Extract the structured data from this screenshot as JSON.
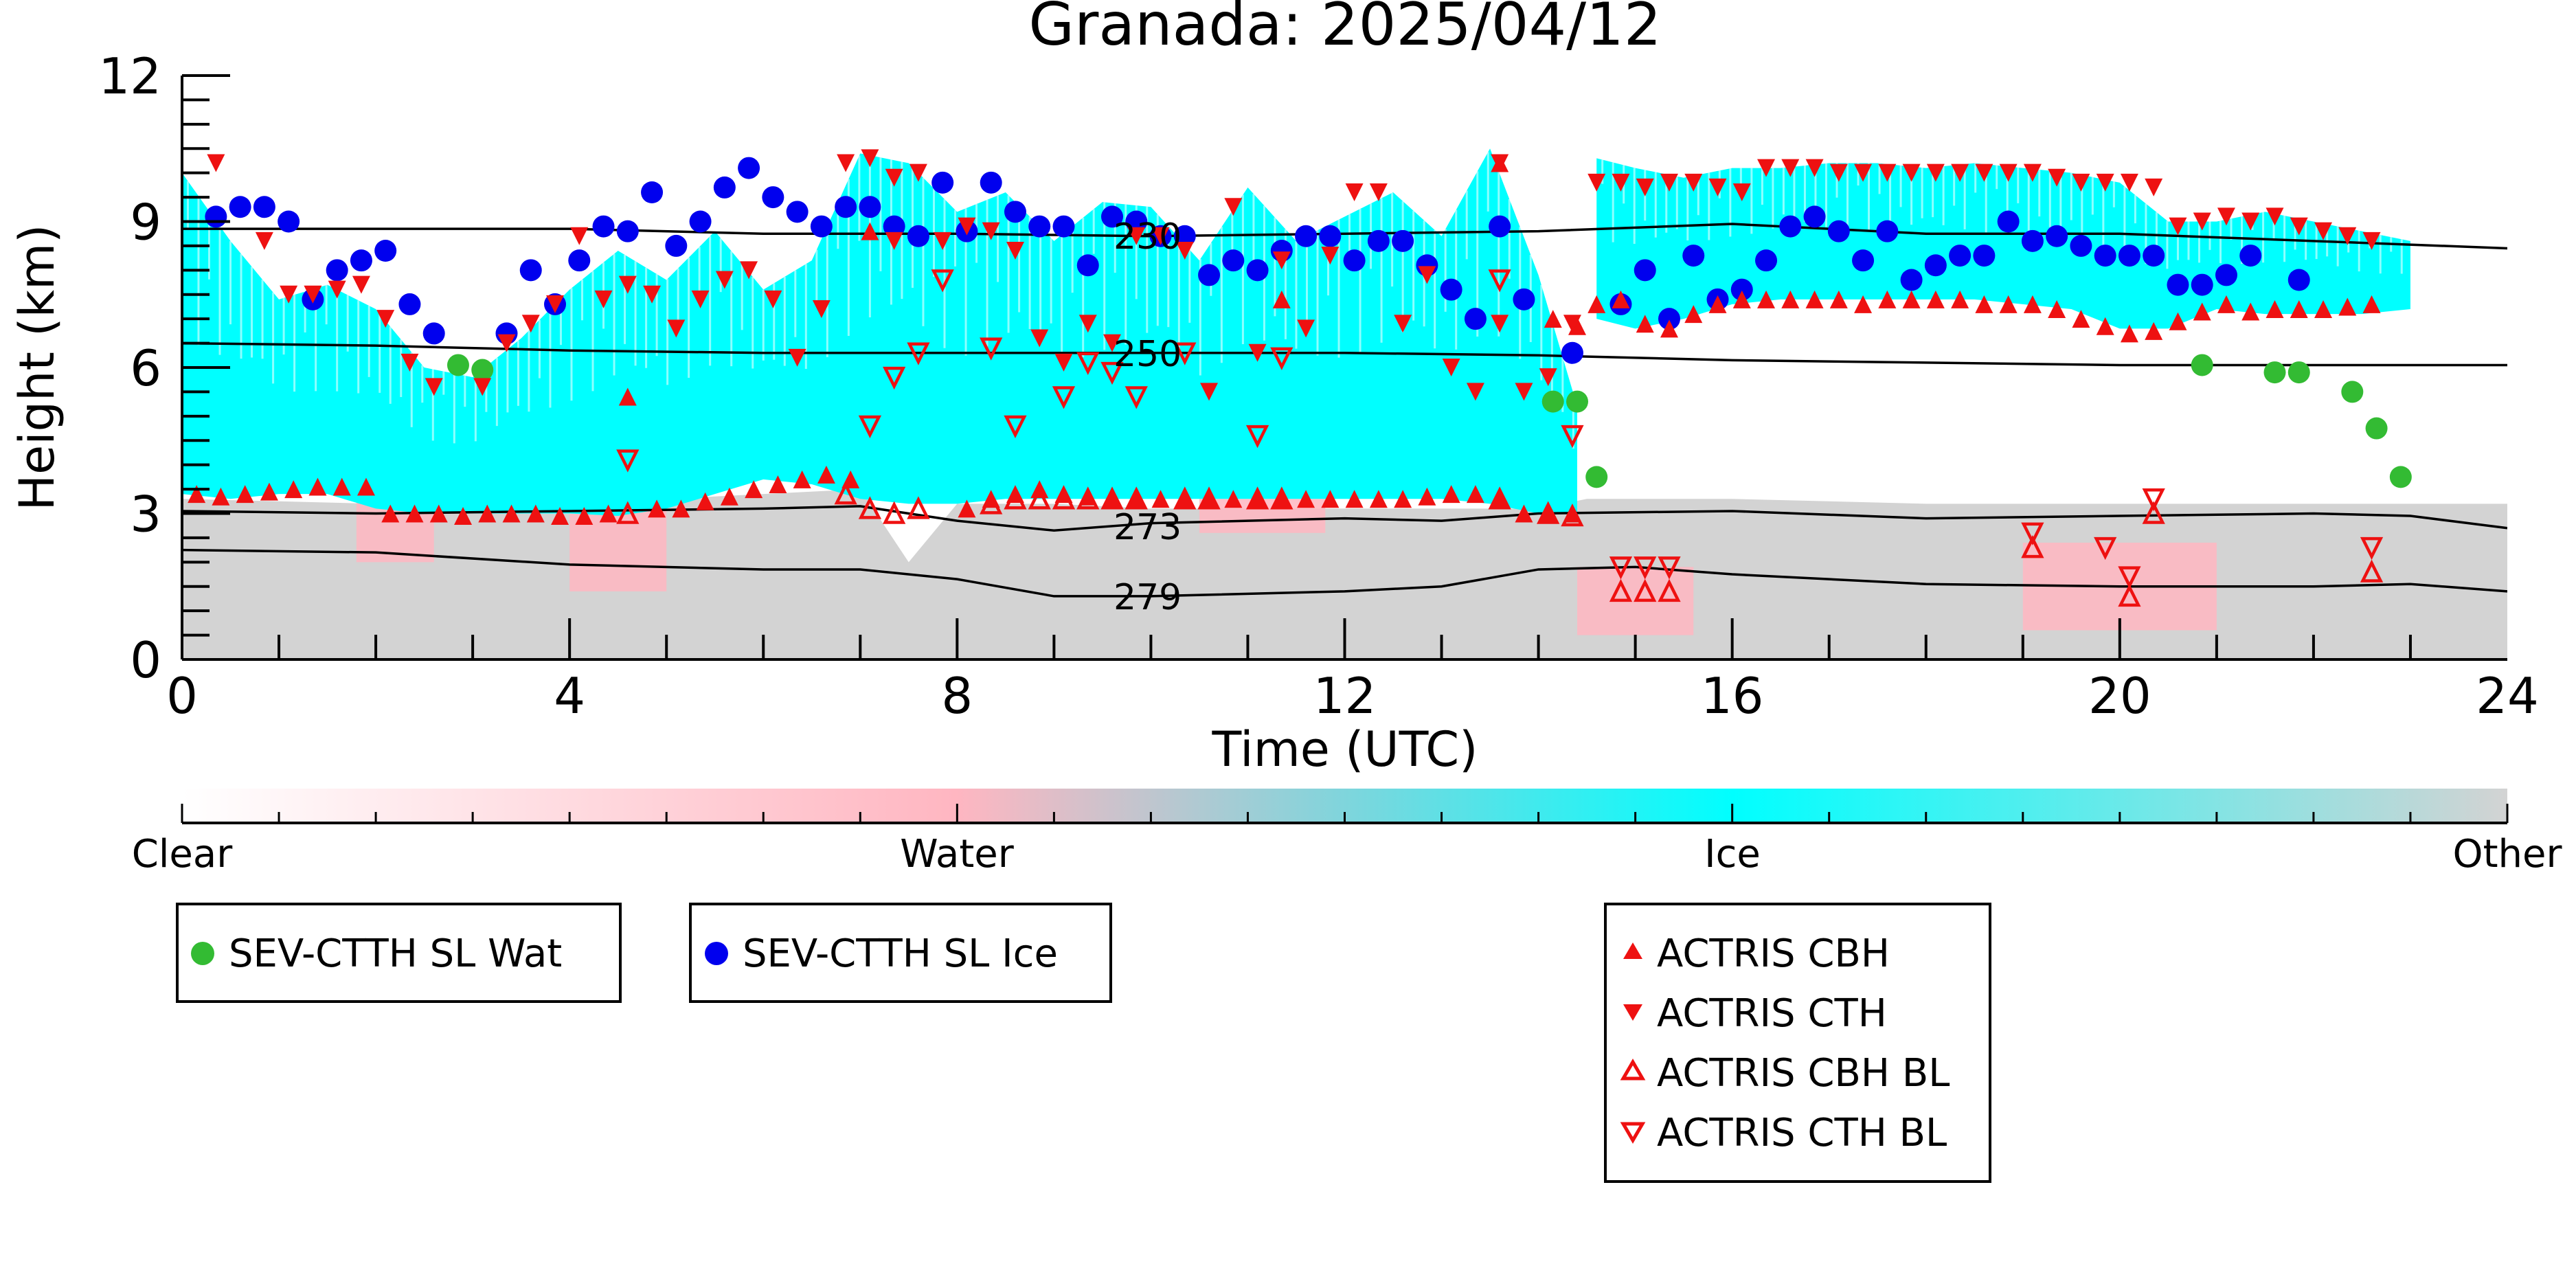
{
  "chart_data": {
    "type": "scatter",
    "title": "Granada: 2025/04/12",
    "xlabel": "Time (UTC)",
    "ylabel": "Height (km)",
    "xlim": [
      0,
      24
    ],
    "ylim": [
      0,
      12
    ],
    "xticks": [
      0,
      4,
      8,
      12,
      16,
      20,
      24
    ],
    "yticks": [
      0,
      3,
      6,
      9,
      12
    ],
    "grid": false,
    "colors": {
      "clear": "#ffffff",
      "water": "#ffb6c1",
      "ice": "#00ffff",
      "other": "#d3d3d3",
      "sev_water": "#33bb33",
      "sev_ice": "#0000ee",
      "actris": "#ee1111",
      "isotherm": "#000000"
    },
    "colorbar": {
      "labels": [
        "Clear",
        "Water",
        "Ice",
        "Other"
      ],
      "stops": [
        0,
        0.333,
        0.667,
        1
      ]
    },
    "isotherms": [
      {
        "label": "230",
        "label_x": 9.6,
        "x": [
          0,
          2,
          4,
          6,
          8,
          10,
          12,
          14,
          16,
          18,
          20,
          22,
          24
        ],
        "y": [
          8.85,
          8.85,
          8.85,
          8.75,
          8.75,
          8.7,
          8.75,
          8.8,
          8.95,
          8.75,
          8.75,
          8.6,
          8.45
        ]
      },
      {
        "label": "250",
        "label_x": 9.6,
        "x": [
          0,
          2,
          4,
          6,
          8,
          10,
          12,
          14,
          16,
          18,
          20,
          22,
          24
        ],
        "y": [
          6.5,
          6.45,
          6.35,
          6.3,
          6.3,
          6.3,
          6.3,
          6.25,
          6.15,
          6.1,
          6.05,
          6.05,
          6.05
        ]
      },
      {
        "label": "273",
        "label_x": 9.6,
        "x": [
          0,
          2,
          4,
          6,
          7,
          8,
          9,
          10,
          12,
          13,
          14,
          16,
          18,
          20,
          22,
          23,
          24
        ],
        "y": [
          3.05,
          3.0,
          3.05,
          3.1,
          3.15,
          2.85,
          2.65,
          2.8,
          2.9,
          2.85,
          3.0,
          3.05,
          2.9,
          2.95,
          3.0,
          2.95,
          2.7
        ]
      },
      {
        "label": "279",
        "label_x": 9.6,
        "x": [
          0,
          2,
          4,
          6,
          7,
          8,
          9,
          10,
          12,
          13,
          14,
          15,
          16,
          18,
          20,
          22,
          23,
          24
        ],
        "y": [
          2.25,
          2.2,
          1.95,
          1.85,
          1.85,
          1.65,
          1.3,
          1.3,
          1.4,
          1.5,
          1.85,
          1.9,
          1.75,
          1.55,
          1.5,
          1.5,
          1.55,
          1.4
        ]
      }
    ],
    "cloud_mask": {
      "ice": [
        {
          "x": [
            0.0,
            0.5,
            1.0,
            1.5,
            2.0,
            2.5,
            3.0,
            3.5,
            4.0,
            4.5,
            5.0,
            5.5,
            6.0,
            6.5,
            7.0,
            7.5,
            8.0,
            8.5,
            9.0,
            9.5,
            10.0,
            10.5,
            11.0,
            11.5,
            12.0,
            12.5,
            13.0,
            13.5,
            14.0,
            14.4
          ],
          "top": [
            10.0,
            8.6,
            7.4,
            7.7,
            7.2,
            6.0,
            5.8,
            6.6,
            7.6,
            8.4,
            7.8,
            8.8,
            7.6,
            8.2,
            10.4,
            10.2,
            9.2,
            9.6,
            8.6,
            9.4,
            9.3,
            8.2,
            9.7,
            8.6,
            9.1,
            9.6,
            8.7,
            10.5,
            7.9,
            5.2
          ],
          "bottom": [
            3.4,
            3.3,
            3.4,
            3.4,
            3.1,
            3.0,
            3.0,
            3.0,
            3.0,
            2.95,
            3.1,
            3.4,
            3.7,
            3.6,
            3.3,
            3.2,
            3.2,
            3.3,
            3.3,
            3.3,
            3.3,
            3.3,
            3.3,
            3.3,
            3.3,
            3.3,
            3.3,
            3.2,
            3.0,
            3.0
          ]
        },
        {
          "x": [
            14.6,
            15.0,
            15.5,
            16.0,
            16.5,
            17.0,
            17.5,
            18.0,
            18.5,
            19.0,
            19.5,
            20.0,
            20.5,
            21.0,
            21.5,
            22.0,
            22.5,
            23.0
          ],
          "top": [
            10.3,
            10.1,
            9.9,
            10.1,
            10.1,
            10.2,
            10.2,
            10.1,
            10.2,
            10.1,
            10.0,
            9.8,
            9.0,
            9.0,
            9.2,
            9.0,
            8.8,
            8.6
          ],
          "bottom": [
            7.0,
            6.8,
            7.0,
            7.3,
            7.4,
            7.4,
            7.4,
            7.4,
            7.4,
            7.3,
            7.2,
            6.8,
            6.8,
            7.2,
            7.1,
            7.1,
            7.1,
            7.2
          ]
        }
      ],
      "other": {
        "x": [
          0,
          2,
          4,
          6,
          7,
          7.5,
          8,
          9,
          10,
          12,
          14,
          14.5,
          16,
          18,
          20,
          22,
          24
        ],
        "top": [
          3.3,
          3.2,
          3.2,
          3.4,
          3.5,
          2.0,
          3.2,
          3.2,
          3.1,
          3.1,
          3.1,
          3.3,
          3.3,
          3.2,
          3.2,
          3.2,
          3.2
        ]
      },
      "water": [
        {
          "x": [
            1.8,
            2.6
          ],
          "top": 3.3,
          "bottom": 2.0
        },
        {
          "x": [
            4.0,
            5.0
          ],
          "top": 3.1,
          "bottom": 1.4
        },
        {
          "x": [
            10.5,
            11.8
          ],
          "top": 3.3,
          "bottom": 2.6
        },
        {
          "x": [
            14.4,
            15.6
          ],
          "top": 1.9,
          "bottom": 0.5
        },
        {
          "x": [
            19.0,
            21.0
          ],
          "top": 2.4,
          "bottom": 0.6
        }
      ]
    },
    "series": [
      {
        "name": "SEV-CTTH SL Wat",
        "marker": "circle",
        "color": "#33bb33",
        "x": [
          2.85,
          3.1,
          14.15,
          14.4,
          14.6,
          20.85,
          21.6,
          21.85,
          22.4,
          22.65,
          22.9
        ],
        "y": [
          6.05,
          5.95,
          5.3,
          5.3,
          3.75,
          6.05,
          5.9,
          5.9,
          5.5,
          4.75,
          3.75
        ]
      },
      {
        "name": "SEV-CTTH SL Ice",
        "marker": "circle",
        "color": "#0000ee",
        "x": [
          0.35,
          0.6,
          0.85,
          1.1,
          1.35,
          1.6,
          1.85,
          2.1,
          2.35,
          2.6,
          3.35,
          3.6,
          3.85,
          4.1,
          4.35,
          4.6,
          4.85,
          5.1,
          5.35,
          5.6,
          5.85,
          6.1,
          6.35,
          6.6,
          6.85,
          7.1,
          7.35,
          7.6,
          7.85,
          8.1,
          8.35,
          8.6,
          8.85,
          9.1,
          9.35,
          9.6,
          9.85,
          10.1,
          10.35,
          10.6,
          10.85,
          11.1,
          11.35,
          11.6,
          11.85,
          12.1,
          12.35,
          12.6,
          12.85,
          13.1,
          13.35,
          13.6,
          13.85,
          14.35,
          14.85,
          15.1,
          15.35,
          15.6,
          15.85,
          16.1,
          16.35,
          16.6,
          16.85,
          17.1,
          17.35,
          17.6,
          17.85,
          18.1,
          18.35,
          18.6,
          18.85,
          19.1,
          19.35,
          19.6,
          19.85,
          20.1,
          20.35,
          20.6,
          20.85,
          21.1,
          21.35,
          21.85
        ],
        "y": [
          9.1,
          9.3,
          9.3,
          9.0,
          7.4,
          8.0,
          8.2,
          8.4,
          7.3,
          6.7,
          6.7,
          8.0,
          7.3,
          8.2,
          8.9,
          8.8,
          9.6,
          8.5,
          9.0,
          9.7,
          10.1,
          9.5,
          9.2,
          8.9,
          9.3,
          9.3,
          8.9,
          8.7,
          9.8,
          8.8,
          9.8,
          9.2,
          8.9,
          8.9,
          8.1,
          9.1,
          9.0,
          8.7,
          8.7,
          7.9,
          8.2,
          8.0,
          8.4,
          8.7,
          8.7,
          8.2,
          8.6,
          8.6,
          8.1,
          7.6,
          7.0,
          8.9,
          7.4,
          6.3,
          7.3,
          8.0,
          7.0,
          8.3,
          7.4,
          7.6,
          8.2,
          8.9,
          9.1,
          8.8,
          8.2,
          8.8,
          7.8,
          8.1,
          8.3,
          8.3,
          9.0,
          8.6,
          8.7,
          8.5,
          8.3,
          8.3,
          8.3,
          7.7,
          7.7,
          7.9,
          8.3,
          7.8
        ]
      },
      {
        "name": "ACTRIS CBH",
        "marker": "triangle-up",
        "color": "#ee1111",
        "x": [
          0.15,
          0.4,
          0.65,
          0.9,
          1.15,
          1.4,
          1.65,
          1.9,
          2.15,
          2.4,
          2.65,
          2.9,
          3.15,
          3.4,
          3.65,
          3.9,
          4.15,
          4.4,
          4.6,
          4.9,
          5.15,
          5.4,
          5.65,
          5.9,
          6.15,
          6.4,
          6.65,
          6.9,
          8.1,
          8.35,
          8.6,
          8.85,
          9.1,
          9.35,
          9.6,
          9.85,
          10.1,
          10.35,
          10.6,
          10.85,
          11.1,
          11.35,
          11.6,
          11.85,
          12.1,
          12.35,
          12.6,
          12.85,
          13.1,
          13.35,
          13.6,
          13.85,
          14.1,
          14.35,
          14.15,
          14.4,
          14.6,
          14.85,
          15.1,
          15.35,
          15.6,
          15.85,
          16.1,
          16.35,
          16.6,
          16.85,
          17.1,
          17.35,
          17.6,
          17.85,
          18.1,
          18.35,
          18.6,
          18.85,
          19.1,
          19.35,
          19.6,
          19.85,
          20.1,
          20.35,
          20.6,
          20.85,
          21.1,
          21.35,
          21.6,
          21.85,
          22.1,
          22.35,
          22.6,
          7.1,
          11.35,
          13.6
        ],
        "y": [
          3.4,
          3.35,
          3.4,
          3.45,
          3.5,
          3.55,
          3.55,
          3.55,
          3.0,
          3.0,
          3.0,
          2.95,
          3.0,
          3.0,
          3.0,
          2.95,
          2.95,
          3.0,
          5.4,
          3.1,
          3.1,
          3.25,
          3.35,
          3.5,
          3.6,
          3.7,
          3.8,
          3.7,
          3.1,
          3.3,
          3.4,
          3.5,
          3.4,
          3.35,
          3.3,
          3.3,
          3.3,
          3.3,
          3.3,
          3.3,
          3.3,
          3.3,
          3.3,
          3.3,
          3.3,
          3.3,
          3.3,
          3.35,
          3.4,
          3.4,
          3.3,
          3.0,
          3.0,
          3.0,
          7.0,
          6.85,
          7.3,
          7.4,
          6.9,
          6.8,
          7.1,
          7.3,
          7.4,
          7.4,
          7.4,
          7.4,
          7.4,
          7.3,
          7.4,
          7.4,
          7.4,
          7.4,
          7.3,
          7.3,
          7.3,
          7.2,
          7.0,
          6.85,
          6.7,
          6.75,
          6.95,
          7.15,
          7.3,
          7.15,
          7.2,
          7.2,
          7.2,
          7.25,
          7.3,
          8.8,
          7.4,
          10.2
        ],
        "filled": true
      },
      {
        "name": "ACTRIS CTH",
        "marker": "triangle-down",
        "color": "#ee1111",
        "x": [
          0.35,
          0.85,
          1.1,
          1.35,
          1.6,
          1.85,
          2.1,
          2.35,
          2.6,
          3.1,
          3.35,
          3.6,
          3.85,
          4.1,
          4.35,
          4.6,
          4.85,
          5.1,
          5.35,
          5.6,
          5.85,
          6.1,
          6.35,
          6.6,
          6.85,
          7.1,
          7.35,
          7.6,
          7.85,
          8.1,
          8.35,
          8.6,
          8.85,
          9.1,
          9.35,
          9.6,
          9.85,
          10.1,
          10.35,
          10.6,
          10.85,
          11.1,
          11.35,
          11.6,
          11.85,
          12.1,
          12.35,
          12.6,
          12.85,
          13.1,
          13.35,
          13.6,
          13.85,
          14.1,
          14.35,
          14.6,
          14.85,
          15.1,
          15.35,
          15.6,
          15.85,
          16.1,
          16.35,
          16.6,
          16.85,
          17.1,
          17.35,
          17.6,
          17.85,
          18.1,
          18.35,
          18.6,
          18.85,
          19.1,
          19.35,
          19.6,
          19.85,
          20.1,
          20.35,
          20.6,
          20.85,
          21.1,
          21.35,
          21.6,
          21.85,
          22.1,
          22.35,
          22.6,
          7.35,
          13.6
        ],
        "y": [
          10.2,
          8.6,
          7.5,
          7.5,
          7.6,
          7.7,
          7.0,
          6.1,
          5.6,
          5.6,
          6.5,
          6.9,
          7.3,
          8.7,
          7.4,
          7.7,
          7.5,
          6.8,
          7.4,
          7.8,
          8.0,
          7.4,
          6.2,
          7.2,
          10.2,
          10.3,
          9.9,
          10.0,
          8.6,
          8.9,
          8.8,
          8.4,
          6.6,
          6.1,
          6.9,
          6.5,
          8.7,
          8.7,
          8.4,
          5.5,
          9.3,
          6.3,
          8.2,
          6.8,
          8.3,
          9.6,
          9.6,
          6.9,
          7.9,
          6.0,
          5.5,
          6.9,
          5.5,
          5.8,
          6.9,
          9.8,
          9.8,
          9.7,
          9.8,
          9.8,
          9.7,
          9.6,
          10.1,
          10.1,
          10.1,
          10.0,
          10.0,
          10.0,
          10.0,
          10.0,
          10.0,
          10.0,
          10.0,
          10.0,
          9.9,
          9.8,
          9.8,
          9.8,
          9.7,
          8.9,
          9.0,
          9.1,
          9.0,
          9.1,
          8.9,
          8.8,
          8.7,
          8.6,
          8.6,
          10.2
        ],
        "filled": true
      },
      {
        "name": "ACTRIS CBH BL",
        "marker": "triangle-up",
        "color": "#ee1111",
        "x": [
          4.6,
          6.85,
          7.1,
          7.35,
          7.6,
          8.35,
          8.6,
          8.85,
          9.1,
          9.35,
          9.6,
          9.85,
          10.35,
          10.6,
          11.1,
          11.35,
          13.6,
          14.1,
          14.35,
          14.85,
          15.1,
          15.35,
          19.1,
          20.1,
          20.35,
          22.6
        ],
        "y": [
          3.0,
          3.4,
          3.1,
          3.0,
          3.1,
          3.2,
          3.3,
          3.3,
          3.3,
          3.3,
          3.3,
          3.3,
          3.3,
          3.3,
          3.3,
          3.3,
          3.3,
          3.0,
          2.95,
          1.4,
          1.4,
          1.4,
          2.3,
          1.3,
          3.0,
          1.8
        ],
        "filled": false
      },
      {
        "name": "ACTRIS CTH BL",
        "marker": "triangle-down",
        "color": "#ee1111",
        "x": [
          4.6,
          7.1,
          7.35,
          7.6,
          7.85,
          8.35,
          8.6,
          9.1,
          9.35,
          9.6,
          9.85,
          10.35,
          11.1,
          11.35,
          13.6,
          14.35,
          14.85,
          15.1,
          15.35,
          19.1,
          19.85,
          20.1,
          20.35,
          22.6
        ],
        "y": [
          4.1,
          4.8,
          5.8,
          6.3,
          7.8,
          6.4,
          4.8,
          5.4,
          6.1,
          5.9,
          5.4,
          6.3,
          4.6,
          6.2,
          7.8,
          4.6,
          1.9,
          1.9,
          1.9,
          2.6,
          2.3,
          1.7,
          3.3,
          2.3
        ],
        "filled": false
      }
    ],
    "legends": [
      {
        "placement": "bottom-left",
        "entries": [
          "SEV-CTTH SL Wat"
        ]
      },
      {
        "placement": "bottom-center-left",
        "entries": [
          "SEV-CTTH SL Ice"
        ]
      },
      {
        "placement": "bottom-center-right",
        "entries": [
          "ACTRIS CBH",
          "ACTRIS CTH",
          "ACTRIS CBH BL",
          "ACTRIS CTH BL"
        ]
      }
    ]
  }
}
